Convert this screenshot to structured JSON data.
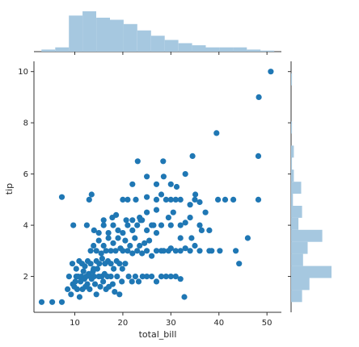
{
  "chart_data": {
    "type": "scatter",
    "style": "jointplot with marginal histograms",
    "xlabel": "total_bill",
    "ylabel": "tip",
    "xlim": [
      1.5,
      53.0
    ],
    "ylim": [
      0.6,
      10.4
    ],
    "xticks": [
      10,
      20,
      30,
      40,
      50
    ],
    "yticks": [
      2,
      4,
      6,
      8,
      10
    ],
    "grid": false,
    "colors": {
      "points": "#1f77b4",
      "histogram": "#a6c8e0"
    },
    "points": [
      [
        3.1,
        1.0
      ],
      [
        5.3,
        1.0
      ],
      [
        7.3,
        1.0
      ],
      [
        7.3,
        5.1
      ],
      [
        8.5,
        1.5
      ],
      [
        8.8,
        2.0
      ],
      [
        9.2,
        1.3
      ],
      [
        9.6,
        1.7
      ],
      [
        9.9,
        1.6
      ],
      [
        10.1,
        1.8
      ],
      [
        10.3,
        2.0
      ],
      [
        10.5,
        1.5
      ],
      [
        10.7,
        2.0
      ],
      [
        11.0,
        1.2
      ],
      [
        11.2,
        1.8
      ],
      [
        11.4,
        2.0
      ],
      [
        11.6,
        1.5
      ],
      [
        11.8,
        2.2
      ],
      [
        12.0,
        1.9
      ],
      [
        12.2,
        1.6
      ],
      [
        12.4,
        2.0
      ],
      [
        12.6,
        1.7
      ],
      [
        12.9,
        2.1
      ],
      [
        13.1,
        1.5
      ],
      [
        13.3,
        2.0
      ],
      [
        13.5,
        1.9
      ],
      [
        13.8,
        2.2
      ],
      [
        14.0,
        2.0
      ],
      [
        14.2,
        1.7
      ],
      [
        14.5,
        1.3
      ],
      [
        14.7,
        2.3
      ],
      [
        15.0,
        2.0
      ],
      [
        15.3,
        1.6
      ],
      [
        15.6,
        2.0
      ],
      [
        15.9,
        1.8
      ],
      [
        16.2,
        2.1
      ],
      [
        16.5,
        1.5
      ],
      [
        16.8,
        2.0
      ],
      [
        17.1,
        1.6
      ],
      [
        17.5,
        2.0
      ],
      [
        17.9,
        1.7
      ],
      [
        18.3,
        1.4
      ],
      [
        18.8,
        2.0
      ],
      [
        19.3,
        1.3
      ],
      [
        19.8,
        1.8
      ],
      [
        9.5,
        2.5
      ],
      [
        10.3,
        2.3
      ],
      [
        10.9,
        2.6
      ],
      [
        11.5,
        2.5
      ],
      [
        12.1,
        2.4
      ],
      [
        12.7,
        2.6
      ],
      [
        13.3,
        2.5
      ],
      [
        13.9,
        2.3
      ],
      [
        14.5,
        2.6
      ],
      [
        15.1,
        2.5
      ],
      [
        15.7,
        2.7
      ],
      [
        16.3,
        2.5
      ],
      [
        16.9,
        2.6
      ],
      [
        17.5,
        2.5
      ],
      [
        18.1,
        2.3
      ],
      [
        18.7,
        2.6
      ],
      [
        19.3,
        2.5
      ],
      [
        19.9,
        2.3
      ],
      [
        20.5,
        2.5
      ],
      [
        21.2,
        2.0
      ],
      [
        21.9,
        1.8
      ],
      [
        22.6,
        2.0
      ],
      [
        23.3,
        1.8
      ],
      [
        24.1,
        2.0
      ],
      [
        25.0,
        2.0
      ],
      [
        26.0,
        2.0
      ],
      [
        27.0,
        1.8
      ],
      [
        28.0,
        2.0
      ],
      [
        29.0,
        2.0
      ],
      [
        30.0,
        2.0
      ],
      [
        31.0,
        2.0
      ],
      [
        32.0,
        1.9
      ],
      [
        32.8,
        1.2
      ],
      [
        13.3,
        3.0
      ],
      [
        13.9,
        3.2
      ],
      [
        14.5,
        3.0
      ],
      [
        15.0,
        3.4
      ],
      [
        15.5,
        2.9
      ],
      [
        16.0,
        3.2
      ],
      [
        16.5,
        3.0
      ],
      [
        17.0,
        3.5
      ],
      [
        17.5,
        3.0
      ],
      [
        18.0,
        3.3
      ],
      [
        18.5,
        3.0
      ],
      [
        19.0,
        3.5
      ],
      [
        19.5,
        3.1
      ],
      [
        20.0,
        3.0
      ],
      [
        20.5,
        3.4
      ],
      [
        21.0,
        3.0
      ],
      [
        21.5,
        3.2
      ],
      [
        22.0,
        2.9
      ],
      [
        22.5,
        3.5
      ],
      [
        23.0,
        3.0
      ],
      [
        23.5,
        3.2
      ],
      [
        24.0,
        2.9
      ],
      [
        24.5,
        3.3
      ],
      [
        25.0,
        3.0
      ],
      [
        25.5,
        3.4
      ],
      [
        26.0,
        2.8
      ],
      [
        27.0,
        3.0
      ],
      [
        28.0,
        3.0
      ],
      [
        28.5,
        3.0
      ],
      [
        29.5,
        3.0
      ],
      [
        30.0,
        3.1
      ],
      [
        31.0,
        3.0
      ],
      [
        32.0,
        3.0
      ],
      [
        33.0,
        3.1
      ],
      [
        34.0,
        3.0
      ],
      [
        35.0,
        3.2
      ],
      [
        36.0,
        3.0
      ],
      [
        38.0,
        3.0
      ],
      [
        38.5,
        3.0
      ],
      [
        40.2,
        3.0
      ],
      [
        14.0,
        3.8
      ],
      [
        15.0,
        3.7
      ],
      [
        16.0,
        4.0
      ],
      [
        17.0,
        3.7
      ],
      [
        18.0,
        4.0
      ],
      [
        19.0,
        3.8
      ],
      [
        20.0,
        3.7
      ],
      [
        21.0,
        4.0
      ],
      [
        22.0,
        3.8
      ],
      [
        23.0,
        4.0
      ],
      [
        24.0,
        4.2
      ],
      [
        25.0,
        3.8
      ],
      [
        26.0,
        4.0
      ],
      [
        27.0,
        3.7
      ],
      [
        28.0,
        4.0
      ],
      [
        30.0,
        4.0
      ],
      [
        32.0,
        3.5
      ],
      [
        34.0,
        4.3
      ],
      [
        36.0,
        4.0
      ],
      [
        38.0,
        3.8
      ],
      [
        46.0,
        3.5
      ],
      [
        9.7,
        4.0
      ],
      [
        12.5,
        4.0
      ],
      [
        16.0,
        4.2
      ],
      [
        17.8,
        4.3
      ],
      [
        18.6,
        4.4
      ],
      [
        20.7,
        4.2
      ],
      [
        22.0,
        4.2
      ],
      [
        23.7,
        4.2
      ],
      [
        26.4,
        4.0
      ],
      [
        25.0,
        4.5
      ],
      [
        27.0,
        4.6
      ],
      [
        29.5,
        4.3
      ],
      [
        32.0,
        4.0
      ],
      [
        33.0,
        4.1
      ],
      [
        34.3,
        3.5
      ],
      [
        36.4,
        3.8
      ],
      [
        43.5,
        3.0
      ],
      [
        44.2,
        2.5
      ],
      [
        20.0,
        5.0
      ],
      [
        21.0,
        5.0
      ],
      [
        22.7,
        5.0
      ],
      [
        23.5,
        4.3
      ],
      [
        25.0,
        5.1
      ],
      [
        27.0,
        5.0
      ],
      [
        28.0,
        5.2
      ],
      [
        29.0,
        5.0
      ],
      [
        30.0,
        5.0
      ],
      [
        31.0,
        5.0
      ],
      [
        32.0,
        5.0
      ],
      [
        34.0,
        4.8
      ],
      [
        35.0,
        5.0
      ],
      [
        36.0,
        4.9
      ],
      [
        37.2,
        4.5
      ],
      [
        39.8,
        5.0
      ],
      [
        41.3,
        5.0
      ],
      [
        43.0,
        5.0
      ],
      [
        48.2,
        5.0
      ],
      [
        13.0,
        5.0
      ],
      [
        13.5,
        5.2
      ],
      [
        22.0,
        5.6
      ],
      [
        25.0,
        5.9
      ],
      [
        27.0,
        5.6
      ],
      [
        28.5,
        5.9
      ],
      [
        30.0,
        5.6
      ],
      [
        30.5,
        4.5
      ],
      [
        33.0,
        6.0
      ],
      [
        23.1,
        6.5
      ],
      [
        28.4,
        6.5
      ],
      [
        34.5,
        6.7
      ],
      [
        31.2,
        5.5
      ],
      [
        35.1,
        5.2
      ],
      [
        39.5,
        7.6
      ],
      [
        48.2,
        6.7
      ],
      [
        48.3,
        9.0
      ],
      [
        50.8,
        10.0
      ]
    ],
    "x_marginal_hist": {
      "bin_edges": [
        3.07,
        5.92,
        8.77,
        11.62,
        14.47,
        17.32,
        20.17,
        23.02,
        25.87,
        28.72,
        31.57,
        34.42,
        37.27,
        40.12,
        42.97,
        45.82,
        48.67,
        51.52
      ],
      "counts": [
        2,
        4,
        34,
        38,
        32,
        30,
        26,
        20,
        15,
        11,
        8,
        6,
        4,
        4,
        4,
        2,
        1
      ]
    },
    "y_marginal_hist": {
      "bin_edges": [
        1.0,
        1.47,
        1.94,
        2.41,
        2.88,
        3.35,
        3.82,
        4.29,
        4.76,
        5.23,
        5.7,
        6.17,
        6.64,
        7.11,
        7.58,
        8.05,
        8.52,
        8.99,
        9.46,
        9.93
      ],
      "counts": [
        12,
        20,
        44,
        13,
        18,
        34,
        8,
        12,
        2,
        11,
        3,
        1,
        3,
        0,
        1,
        0,
        0,
        0,
        1
      ]
    }
  }
}
